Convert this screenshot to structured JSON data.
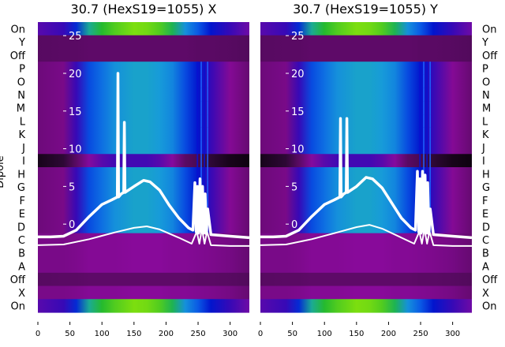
{
  "chart_data": {
    "type": "heatmap",
    "ylabel": "Dipole",
    "row_labels": [
      "On",
      "Y",
      "Off",
      "P",
      "O",
      "N",
      "M",
      "L",
      "K",
      "J",
      "I",
      "H",
      "G",
      "F",
      "E",
      "D",
      "C",
      "B",
      "A",
      "Off",
      "X",
      "On"
    ],
    "row_profiles": [
      "on",
      "off",
      "off",
      "mid",
      "mid",
      "mid",
      "mid",
      "mid",
      "mid",
      "mid",
      "dip",
      "mid",
      "mid",
      "mid",
      "mid",
      "mid",
      "low",
      "low",
      "low",
      "off",
      "low",
      "on"
    ],
    "xlim": [
      0,
      330
    ],
    "x_ticks": [
      "0",
      "50",
      "100",
      "150",
      "200",
      "250",
      "300"
    ],
    "x_tick_values": [
      0,
      50,
      100,
      150,
      200,
      250,
      300
    ],
    "inner_ylim": [
      -11.7,
      26.8
    ],
    "inner_y_ticks": [
      "0",
      "5",
      "10",
      "15",
      "20",
      "25"
    ],
    "inner_y_tick_values": [
      0,
      5,
      10,
      15,
      20,
      25
    ],
    "profile_x": [
      0,
      40,
      60,
      80,
      100,
      120,
      150,
      170,
      190,
      210,
      230,
      250,
      270,
      300,
      330
    ],
    "profiles": {
      "mid": [
        0.3,
        0.33,
        0.45,
        0.6,
        0.66,
        0.72,
        0.76,
        0.76,
        0.74,
        0.7,
        0.6,
        0.52,
        0.45,
        0.36,
        0.28
      ],
      "on": [
        0.42,
        0.45,
        0.55,
        0.8,
        0.88,
        0.92,
        0.96,
        0.95,
        0.92,
        0.85,
        0.72,
        0.62,
        0.52,
        0.45,
        0.4
      ],
      "off": [
        0.24,
        0.25,
        0.25,
        0.26,
        0.26,
        0.26,
        0.26,
        0.26,
        0.26,
        0.26,
        0.26,
        0.25,
        0.25,
        0.24,
        0.22
      ],
      "low": [
        0.33,
        0.33,
        0.34,
        0.36,
        0.36,
        0.36,
        0.37,
        0.37,
        0.37,
        0.36,
        0.36,
        0.35,
        0.34,
        0.32,
        0.28
      ],
      "dip": [
        0.05,
        0.1,
        0.25,
        0.38,
        0.42,
        0.44,
        0.44,
        0.44,
        0.42,
        0.38,
        0.25,
        0.18,
        0.1,
        0.05,
        0.03
      ]
    },
    "colormap": [
      "#000000",
      "#3a0a42",
      "#5a0a64",
      "#8a0a9c",
      "#0008c8",
      "#0a5ce6",
      "#18a0d8",
      "#20b830",
      "#a8f000"
    ],
    "panels": [
      {
        "title": "30.7 (HexS19=1055) X",
        "series": [
          {
            "name": "thick",
            "x": [
              0,
              20,
              40,
              60,
              80,
              100,
              115,
              124,
              125,
              126,
              130,
              134,
              135,
              136,
              150,
              165,
              175,
              190,
              205,
              220,
              235,
              242,
              245,
              247,
              249,
              251,
              253,
              255,
              257,
              259,
              261,
              263,
              265,
              270,
              300,
              330
            ],
            "y": [
              -1.7,
              -1.7,
              -1.6,
              -0.8,
              1.0,
              2.6,
              3.2,
              3.6,
              20.0,
              3.6,
              4.0,
              4.2,
              13.5,
              4.2,
              5.0,
              5.8,
              5.6,
              4.5,
              2.5,
              0.8,
              -0.5,
              -0.8,
              5.5,
              -1.0,
              5.0,
              -1.2,
              6.0,
              -1.0,
              5.0,
              -1.2,
              4.0,
              -1.3,
              2.0,
              -1.4,
              -1.6,
              -1.8
            ]
          },
          {
            "name": "thin",
            "x": [
              0,
              40,
              80,
              120,
              150,
              170,
              190,
              220,
              240,
              248,
              252,
              256,
              260,
              264,
              270,
              300,
              330
            ],
            "y": [
              -2.8,
              -2.7,
              -2.0,
              -1.1,
              -0.5,
              -0.3,
              -0.7,
              -1.8,
              -2.6,
              -1.0,
              -2.6,
              -0.6,
              -2.6,
              -1.0,
              -2.8,
              -2.9,
              -2.9
            ]
          }
        ]
      },
      {
        "title": "30.7 (HexS19=1055) Y",
        "series": [
          {
            "name": "thick",
            "x": [
              0,
              20,
              40,
              60,
              80,
              100,
              115,
              124,
              125,
              126,
              130,
              134,
              135,
              136,
              150,
              165,
              175,
              190,
              205,
              220,
              235,
              242,
              245,
              247,
              249,
              251,
              253,
              255,
              257,
              259,
              261,
              263,
              265,
              270,
              300,
              330
            ],
            "y": [
              -1.7,
              -1.7,
              -1.6,
              -0.8,
              1.0,
              2.6,
              3.2,
              3.6,
              14.0,
              3.6,
              4.0,
              4.2,
              14.0,
              4.2,
              5.0,
              6.2,
              6.0,
              4.8,
              2.8,
              0.8,
              -0.5,
              -0.8,
              7.0,
              -1.0,
              6.0,
              -1.2,
              7.0,
              -1.0,
              6.5,
              -1.2,
              5.5,
              -1.3,
              2.0,
              -1.4,
              -1.6,
              -1.8
            ]
          },
          {
            "name": "thin",
            "x": [
              0,
              40,
              80,
              120,
              150,
              170,
              190,
              220,
              240,
              248,
              252,
              256,
              260,
              264,
              270,
              300,
              330
            ],
            "y": [
              -2.8,
              -2.7,
              -2.0,
              -1.1,
              -0.4,
              -0.1,
              -0.6,
              -1.8,
              -2.6,
              -1.0,
              -2.6,
              -0.6,
              -2.6,
              -1.0,
              -2.8,
              -2.9,
              -2.9
            ]
          }
        ]
      }
    ]
  }
}
